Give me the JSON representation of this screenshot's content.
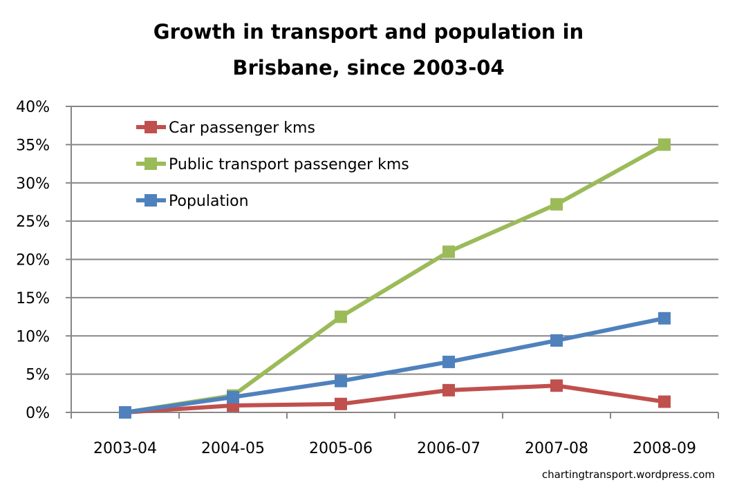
{
  "chart_data": {
    "type": "line",
    "title": [
      "Growth in transport and population in",
      "Brisbane, since 2003-04"
    ],
    "xlabel": "",
    "ylabel": "",
    "categories": [
      "2003-04",
      "2004-05",
      "2005-06",
      "2006-07",
      "2007-08",
      "2008-09"
    ],
    "ylim": [
      0,
      40
    ],
    "yticks": [
      0,
      5,
      10,
      15,
      20,
      25,
      30,
      35,
      40
    ],
    "ytick_labels": [
      "0%",
      "5%",
      "10%",
      "15%",
      "20%",
      "25%",
      "30%",
      "35%",
      "40%"
    ],
    "grid": true,
    "legend_position": "top-left",
    "series": [
      {
        "name": "Car passenger kms",
        "color": "#c0504d",
        "values": [
          0,
          0.9,
          1.1,
          2.9,
          3.5,
          1.4
        ]
      },
      {
        "name": "Public transport passenger kms",
        "color": "#9bbb59",
        "values": [
          0,
          2.2,
          12.5,
          21.0,
          27.2,
          35.0
        ]
      },
      {
        "name": "Population",
        "color": "#4f81bd",
        "values": [
          0,
          2.0,
          4.1,
          6.6,
          9.4,
          12.3
        ]
      }
    ],
    "annotations": [
      "chartingtransport.wordpress.com"
    ]
  }
}
